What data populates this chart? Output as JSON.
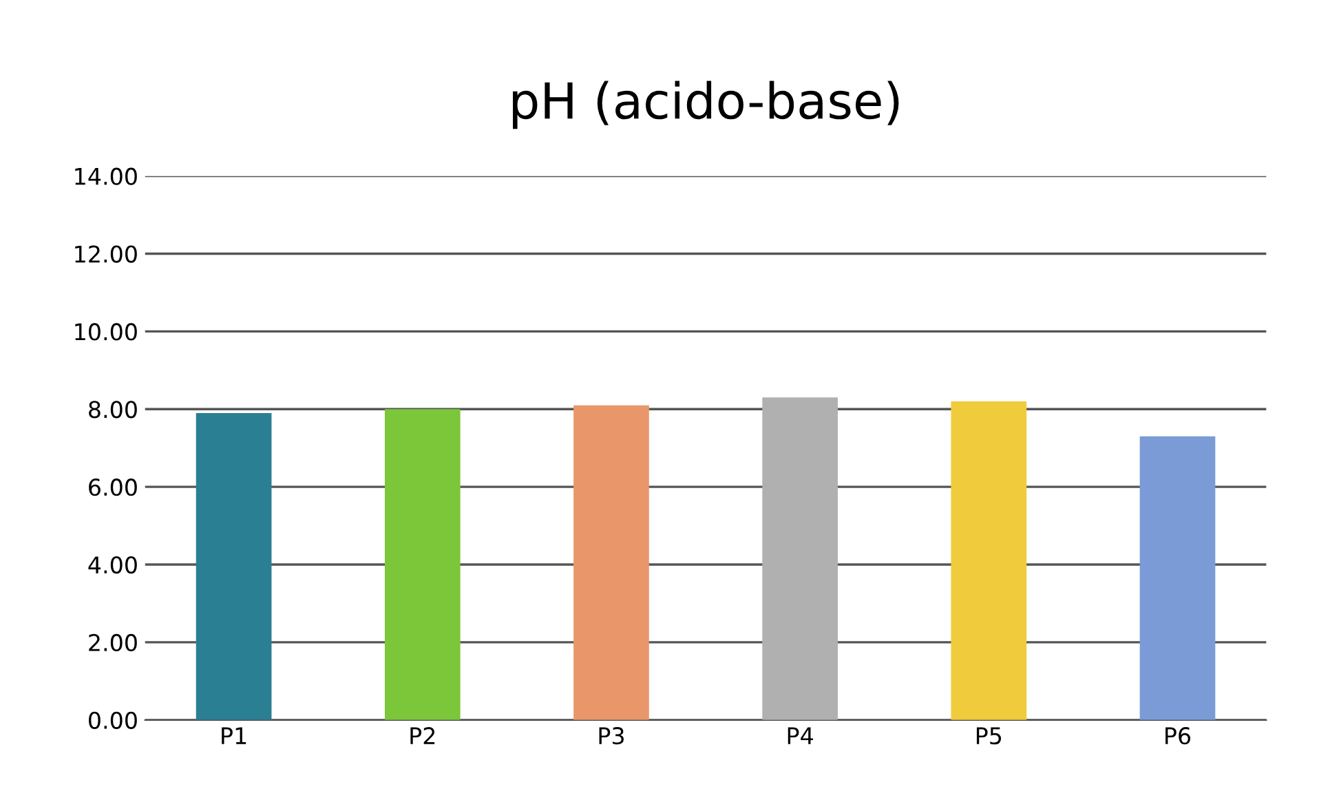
{
  "chart_data": {
    "type": "bar",
    "title": "pH (acido-base)",
    "categories": [
      "P1",
      "P2",
      "P3",
      "P4",
      "P5",
      "P6"
    ],
    "values": [
      7.9,
      8.0,
      8.1,
      8.3,
      8.2,
      7.3
    ],
    "colors": [
      "#2a7f93",
      "#7cc63a",
      "#e9976a",
      "#b0b0b0",
      "#f0cb3c",
      "#7b9bd6"
    ],
    "ylim": [
      0,
      14
    ],
    "yticks": [
      {
        "value": 0,
        "label": "0.00"
      },
      {
        "value": 2,
        "label": "2.00"
      },
      {
        "value": 4,
        "label": "4.00"
      },
      {
        "value": 6,
        "label": "6.00"
      },
      {
        "value": 8,
        "label": "8.00"
      },
      {
        "value": 10,
        "label": "10.00"
      },
      {
        "value": 12,
        "label": "12.00"
      },
      {
        "value": 14,
        "label": "14.00"
      }
    ],
    "grid": "y"
  }
}
